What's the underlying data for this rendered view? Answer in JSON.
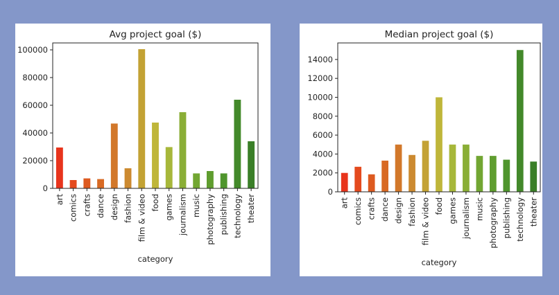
{
  "chart_data": [
    {
      "type": "bar",
      "title": "Avg project goal ($)",
      "xlabel": "category",
      "ylabel": "",
      "categories": [
        "art",
        "comics",
        "crafts",
        "dance",
        "design",
        "fashion",
        "film & video",
        "food",
        "games",
        "journalism",
        "music",
        "photography",
        "publishing",
        "technology",
        "theater"
      ],
      "values": [
        29500,
        6000,
        7200,
        6700,
        46800,
        14500,
        100500,
        47500,
        29800,
        55000,
        10800,
        12500,
        10800,
        64000,
        34000
      ],
      "yticks": [
        0,
        20000,
        40000,
        60000,
        80000,
        100000
      ],
      "ylim": [
        0,
        105000
      ],
      "grid": false,
      "legend": "none",
      "colors": [
        "#e8341c",
        "#e44a1e",
        "#dd5a20",
        "#d86a24",
        "#d2782a",
        "#cc8a30",
        "#c3a234",
        "#bfb63a",
        "#a7b73a",
        "#8aae36",
        "#72a632",
        "#5f9d2f",
        "#4f952d",
        "#43892a",
        "#3a7f28"
      ]
    },
    {
      "type": "bar",
      "title": "Median project goal ($)",
      "xlabel": "category",
      "ylabel": "",
      "categories": [
        "art",
        "comics",
        "crafts",
        "dance",
        "design",
        "fashion",
        "film & video",
        "food",
        "games",
        "journalism",
        "music",
        "photography",
        "publishing",
        "technology",
        "theater"
      ],
      "values": [
        2000,
        2650,
        1850,
        3300,
        5000,
        3900,
        5400,
        10000,
        5000,
        5000,
        3800,
        3800,
        3400,
        15000,
        3200
      ],
      "yticks": [
        0,
        2000,
        4000,
        6000,
        8000,
        10000,
        12000,
        14000
      ],
      "ylim": [
        0,
        15750
      ],
      "grid": false,
      "legend": "none",
      "colors": [
        "#e8341c",
        "#e44a1e",
        "#dd5a20",
        "#d86a24",
        "#d2782a",
        "#cc8a30",
        "#c3a234",
        "#bfb63a",
        "#a7b73a",
        "#8aae36",
        "#72a632",
        "#5f9d2f",
        "#4f952d",
        "#43892a",
        "#3a7f28"
      ]
    }
  ]
}
